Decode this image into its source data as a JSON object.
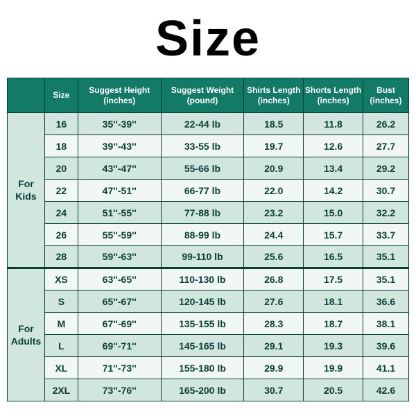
{
  "title": "Size",
  "columns": [
    "Size",
    "Suggest Height\n(inches)",
    "Suggest Weight\n(pound)",
    "Shirts Length\n(inches)",
    "Shorts Length\n(inches)",
    "Bust\n(inches)"
  ],
  "groups": [
    {
      "label": "For\nKids",
      "rows": [
        {
          "size": "16",
          "height": "35''-39''",
          "weight": "22-44 lb",
          "shirt": "18.5",
          "short": "11.8",
          "bust": "26.2"
        },
        {
          "size": "18",
          "height": "39''-43''",
          "weight": "33-55 lb",
          "shirt": "19.7",
          "short": "12.6",
          "bust": "27.7"
        },
        {
          "size": "20",
          "height": "43''-47''",
          "weight": "55-66 lb",
          "shirt": "20.9",
          "short": "13.4",
          "bust": "29.2"
        },
        {
          "size": "22",
          "height": "47''-51''",
          "weight": "66-77 lb",
          "shirt": "22.0",
          "short": "14.2",
          "bust": "30.7"
        },
        {
          "size": "24",
          "height": "51''-55''",
          "weight": "77-88 lb",
          "shirt": "23.2",
          "short": "15.0",
          "bust": "32.2"
        },
        {
          "size": "26",
          "height": "55''-59''",
          "weight": "88-99 lb",
          "shirt": "24.4",
          "short": "15.7",
          "bust": "33.7"
        },
        {
          "size": "28",
          "height": "59''-63''",
          "weight": "99-110 lb",
          "shirt": "25.6",
          "short": "16.5",
          "bust": "35.1"
        }
      ]
    },
    {
      "label": "For\nAdults",
      "rows": [
        {
          "size": "XS",
          "height": "63''-65''",
          "weight": "110-130 lb",
          "shirt": "26.8",
          "short": "17.5",
          "bust": "35.1"
        },
        {
          "size": "S",
          "height": "65''-67''",
          "weight": "120-145 lb",
          "shirt": "27.6",
          "short": "18.1",
          "bust": "36.6"
        },
        {
          "size": "M",
          "height": "67''-69''",
          "weight": "135-155 lb",
          "shirt": "28.3",
          "short": "18.7",
          "bust": "38.1"
        },
        {
          "size": "L",
          "height": "69''-71''",
          "weight": "145-165 lb",
          "shirt": "29.1",
          "short": "19.3",
          "bust": "39.6"
        },
        {
          "size": "XL",
          "height": "71''-73''",
          "weight": "155-180 lb",
          "shirt": "29.9",
          "short": "19.9",
          "bust": "41.1"
        },
        {
          "size": "2XL",
          "height": "73''-76''",
          "weight": "165-200 lb",
          "shirt": "30.7",
          "short": "20.5",
          "bust": "42.6"
        }
      ]
    }
  ],
  "colors": {
    "header_bg": "#127a66",
    "header_fg": "#ffffff",
    "row_even_bg": "#d0e6df",
    "row_odd_bg": "#f0f7f4",
    "border": "#0a3d33",
    "text": "#0a3d33"
  }
}
